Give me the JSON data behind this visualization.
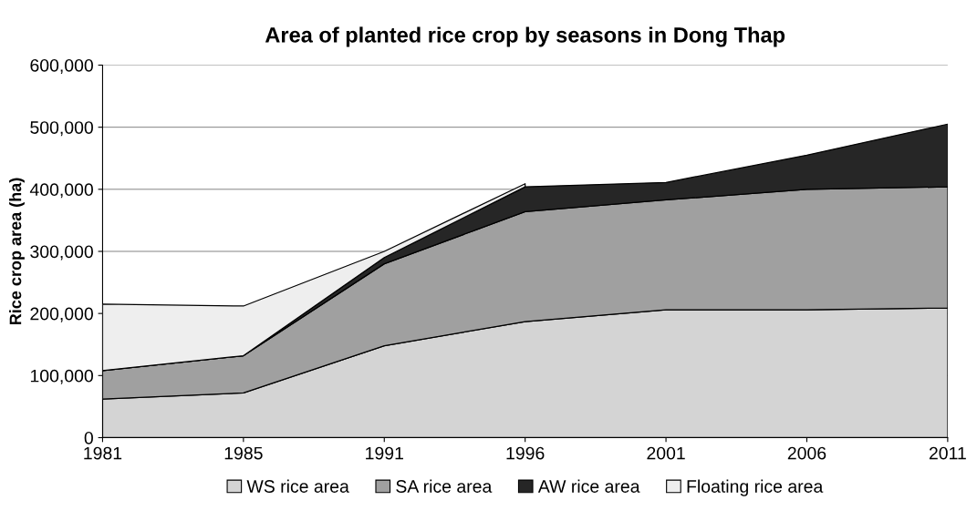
{
  "chart_data": {
    "type": "area",
    "title": "Area of planted rice crop by seasons in Dong Thap",
    "ylabel": "Rice crop area (ha)",
    "categories": [
      "1981",
      "1985",
      "1991",
      "1996",
      "2001",
      "2006",
      "2011"
    ],
    "stacked": true,
    "series": [
      {
        "name": "WS rice area",
        "color": "#d4d4d4",
        "values": [
          62000,
          72000,
          148000,
          187000,
          206000,
          206000,
          209000
        ]
      },
      {
        "name": "SA rice area",
        "color": "#a0a0a0",
        "values": [
          46000,
          60000,
          132000,
          177000,
          177000,
          194000,
          195000
        ]
      },
      {
        "name": "AW rice area",
        "color": "#262626",
        "values": [
          0,
          0,
          10000,
          40000,
          28000,
          55000,
          101000
        ]
      },
      {
        "name": "Floating rice area",
        "color": "#eeeeee",
        "values": [
          107000,
          80000,
          10000,
          5000,
          null,
          null,
          null
        ]
      }
    ],
    "ylim": [
      0,
      600000
    ],
    "yticks": [
      0,
      {
        "value": 100000,
        "label": "100,000"
      },
      {
        "value": 200000,
        "label": "200,000"
      },
      {
        "value": 300000,
        "label": "300,000"
      },
      {
        "value": 400000,
        "label": "400,000"
      },
      {
        "value": 500000,
        "label": "500,000"
      },
      {
        "value": 600000,
        "label": "600,000"
      }
    ],
    "grid": "y",
    "legend": "bottom"
  }
}
